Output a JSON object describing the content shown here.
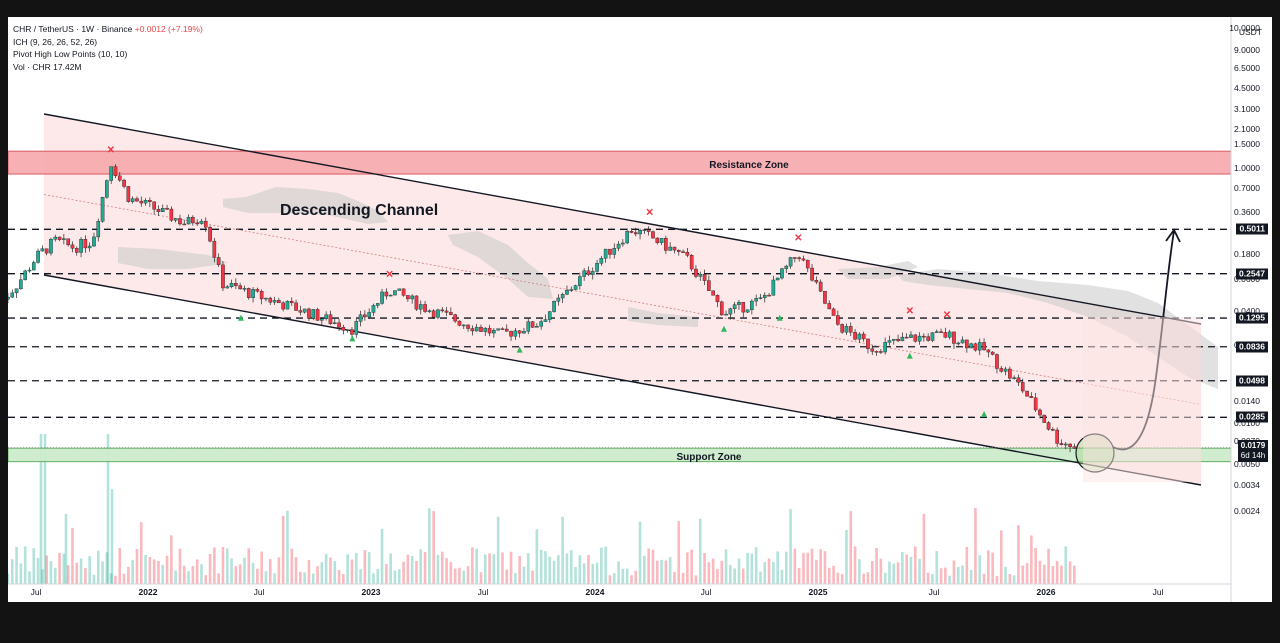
{
  "header": {
    "symbol_line": "CHR / TetherUS · 1W · Binance",
    "change": "+0.0012 (+7.19%)",
    "indicators": [
      "ICH (9, 26, 26, 52, 26)",
      "Pivot High Low Points (10, 10)",
      "Vol · CHR  17.42M"
    ]
  },
  "price_axis": {
    "unit": "USDT",
    "ticks": [
      "10.0000",
      "9.0000",
      "6.5000",
      "4.5000",
      "3.1000",
      "2.1000",
      "1.5000",
      "1.0000",
      "0.7000",
      "0.3600",
      "0.1800",
      "0.0600",
      "0.0400",
      "0.0200",
      "0.0140",
      "0.0100",
      "0.0070",
      "0.0050",
      "0.0034",
      "0.0024"
    ]
  },
  "time_axis": {
    "ticks": [
      {
        "label": "Jul",
        "year": false
      },
      {
        "label": "2022",
        "year": true
      },
      {
        "label": "Jul",
        "year": false
      },
      {
        "label": "2023",
        "year": true
      },
      {
        "label": "Jul",
        "year": false
      },
      {
        "label": "2024",
        "year": true
      },
      {
        "label": "Jul",
        "year": false
      },
      {
        "label": "2025",
        "year": true
      },
      {
        "label": "Jul",
        "year": false
      },
      {
        "label": "2026",
        "year": true
      },
      {
        "label": "Jul",
        "year": false
      }
    ]
  },
  "levels": [
    "0.5011",
    "0.2547",
    "0.1295",
    "0.0836",
    "0.0498",
    "0.0285"
  ],
  "current_price": {
    "value": "0.0179",
    "countdown": "6d 14h"
  },
  "annotations": {
    "resistance_zone": "Resistance Zone",
    "support_zone": "Support Zone",
    "channel": "Descending Channel"
  },
  "colors": {
    "up": "#22ab94",
    "down": "#f23645",
    "resistance_fill": "#f7a9ad",
    "support_fill": "#cdeccd",
    "channel_fill": "#fde3e3",
    "cloud": "#c9c9c9",
    "background": "#131313"
  },
  "chart_data": {
    "type": "candlestick",
    "symbol": "CHR / TetherUS",
    "interval": "1W",
    "y_scale": "log",
    "close_path": [
      {
        "date": "2021-05",
        "price": 0.16
      },
      {
        "date": "2021-06",
        "price": 0.22
      },
      {
        "date": "2021-07",
        "price": 0.33
      },
      {
        "date": "2021-08",
        "price": 0.42
      },
      {
        "date": "2021-09",
        "price": 0.38
      },
      {
        "date": "2021-10",
        "price": 0.42
      },
      {
        "date": "2021-11",
        "price": 1.4
      },
      {
        "date": "2021-12",
        "price": 0.8
      },
      {
        "date": "2022-01",
        "price": 0.72
      },
      {
        "date": "2022-03",
        "price": 0.55
      },
      {
        "date": "2022-04",
        "price": 0.62
      },
      {
        "date": "2022-05",
        "price": 0.22
      },
      {
        "date": "2022-07",
        "price": 0.18
      },
      {
        "date": "2022-09",
        "price": 0.15
      },
      {
        "date": "2022-12",
        "price": 0.11
      },
      {
        "date": "2023-02",
        "price": 0.2
      },
      {
        "date": "2023-04",
        "price": 0.15
      },
      {
        "date": "2023-06",
        "price": 0.12
      },
      {
        "date": "2023-08",
        "price": 0.1
      },
      {
        "date": "2023-10",
        "price": 0.12
      },
      {
        "date": "2023-12",
        "price": 0.22
      },
      {
        "date": "2024-03",
        "price": 0.5
      },
      {
        "date": "2024-04",
        "price": 0.45
      },
      {
        "date": "2024-06",
        "price": 0.32
      },
      {
        "date": "2024-08",
        "price": 0.14
      },
      {
        "date": "2024-10",
        "price": 0.17
      },
      {
        "date": "2024-12",
        "price": 0.35
      },
      {
        "date": "2025-02",
        "price": 0.12
      },
      {
        "date": "2025-04",
        "price": 0.082
      },
      {
        "date": "2025-06",
        "price": 0.095
      },
      {
        "date": "2025-08",
        "price": 0.1
      },
      {
        "date": "2025-10",
        "price": 0.08
      },
      {
        "date": "2025-12",
        "price": 0.045
      },
      {
        "date": "2026-02",
        "price": 0.02
      },
      {
        "date": "2026-03",
        "price": 0.0179
      }
    ],
    "pivot_highs": [
      {
        "date": "2021-11",
        "price": 1.6
      },
      {
        "date": "2023-02",
        "price": 0.24
      },
      {
        "date": "2024-04",
        "price": 0.62
      },
      {
        "date": "2024-12",
        "price": 0.42
      },
      {
        "date": "2025-06",
        "price": 0.138
      },
      {
        "date": "2025-08",
        "price": 0.13
      }
    ],
    "pivot_lows": [
      {
        "date": "2022-06",
        "price": 0.13
      },
      {
        "date": "2022-12",
        "price": 0.095
      },
      {
        "date": "2023-09",
        "price": 0.08
      },
      {
        "date": "2024-08",
        "price": 0.11
      },
      {
        "date": "2024-11",
        "price": 0.13
      },
      {
        "date": "2025-06",
        "price": 0.073
      },
      {
        "date": "2025-10",
        "price": 0.03
      }
    ],
    "resistance_zone": [
      1.2,
      1.6
    ],
    "support_zone": [
      0.0145,
      0.0178
    ],
    "projection": {
      "from": {
        "date": "2026-04",
        "price": 0.0179
      },
      "to": {
        "date": "2026-08",
        "price": 0.5
      }
    }
  }
}
